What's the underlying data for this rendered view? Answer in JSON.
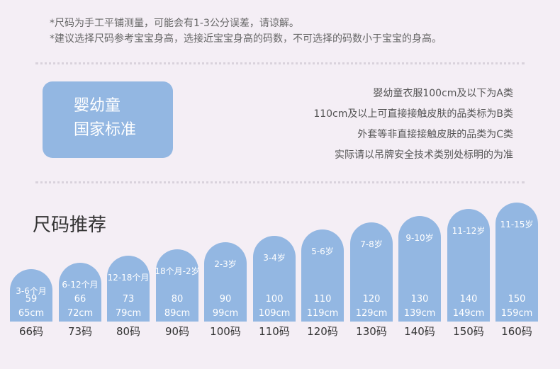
{
  "notes": [
    "*尺码为手工平铺测量，可能会有1-3公分误差，请谅解。",
    "*建议选择尺码参考宝宝身高，选接近宝宝身高的码数，不可选择的码数小于宝宝的身高。"
  ],
  "standard": {
    "line1": "婴幼童",
    "line2": "国家标准",
    "notes": [
      "婴幼童衣服100cm及以下为A类",
      "110cm及以上可直接接触皮肤的品类标为B类",
      "外套等非直接接触皮肤的品类为C类",
      "实际请以吊牌安全技术类别处标明的为准"
    ]
  },
  "recommend_title": "尺码推荐",
  "sizes": [
    {
      "age": "3-6个月",
      "height": "59",
      "range": "65cm",
      "label": "66码",
      "level": 0.0
    },
    {
      "age": "6-12个月",
      "height": "66",
      "range": "72cm",
      "label": "73码",
      "level": 0.1
    },
    {
      "age": "12-18个月",
      "height": "73",
      "range": "79cm",
      "label": "80码",
      "level": 0.2
    },
    {
      "age": "18个月-2岁",
      "height": "80",
      "range": "89cm",
      "label": "90码",
      "level": 0.3
    },
    {
      "age": "2-3岁",
      "height": "90",
      "range": "99cm",
      "label": "100码",
      "level": 0.4
    },
    {
      "age": "3-4岁",
      "height": "100",
      "range": "109cm",
      "label": "110码",
      "level": 0.5
    },
    {
      "age": "5-6岁",
      "height": "110",
      "range": "119cm",
      "label": "120码",
      "level": 0.6
    },
    {
      "age": "7-8岁",
      "height": "120",
      "range": "129cm",
      "label": "130码",
      "level": 0.7
    },
    {
      "age": "9-10岁",
      "height": "130",
      "range": "139cm",
      "label": "140码",
      "level": 0.8
    },
    {
      "age": "11-12岁",
      "height": "140",
      "range": "149cm",
      "label": "150码",
      "level": 0.9
    },
    {
      "age": "11-15岁",
      "height": "150",
      "range": "159cm",
      "label": "160码",
      "level": 1.0
    }
  ],
  "colors": {
    "bar": "#93b7e2",
    "background": "#f4eef5"
  }
}
